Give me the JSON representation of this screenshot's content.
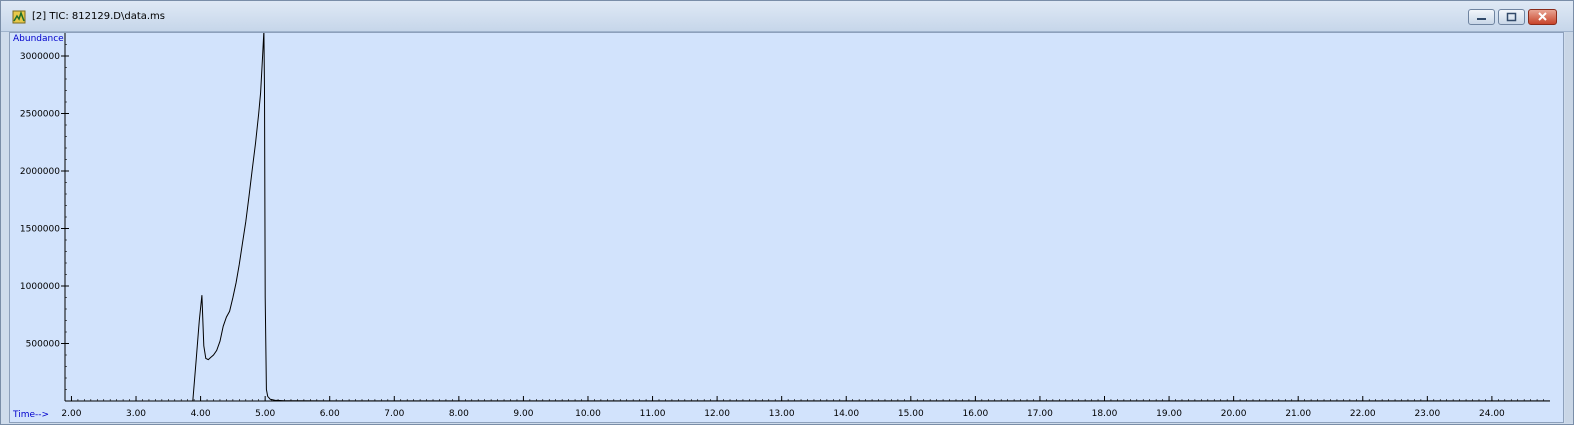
{
  "window": {
    "title": "[2] TIC: 812129.D\\data.ms",
    "icon": "chromatogram-app-icon",
    "controls": [
      "minimize",
      "maximize",
      "close"
    ]
  },
  "chart_data": {
    "type": "line",
    "ylabel": "Abundance",
    "xlabel": "Time-->",
    "xlim": [
      1.9,
      24.9
    ],
    "ylim": [
      0,
      3200000
    ],
    "xticks": [
      "2.00",
      "3.00",
      "4.00",
      "5.00",
      "6.00",
      "7.00",
      "8.00",
      "9.00",
      "10.00",
      "11.00",
      "12.00",
      "13.00",
      "14.00",
      "15.00",
      "16.00",
      "17.00",
      "18.00",
      "19.00",
      "20.00",
      "21.00",
      "22.00",
      "23.00",
      "24.00"
    ],
    "yticks": [
      "500000",
      "1000000",
      "1500000",
      "2000000",
      "2500000",
      "3000000"
    ],
    "series": [
      {
        "x": [
          1.9,
          3.88,
          3.93,
          3.98,
          4.02,
          4.05,
          4.08,
          4.12,
          4.16,
          4.2,
          4.25,
          4.3,
          4.35,
          4.4,
          4.45,
          4.5,
          4.55,
          4.6,
          4.65,
          4.7,
          4.75,
          4.8,
          4.85,
          4.9,
          4.93,
          4.96,
          4.98,
          4.99,
          5.0,
          5.02,
          5.04,
          5.08,
          5.15,
          5.3,
          5.5,
          6.0,
          24.9
        ],
        "y": [
          0,
          0,
          350000,
          700000,
          920000,
          480000,
          370000,
          360000,
          380000,
          400000,
          440000,
          520000,
          650000,
          730000,
          780000,
          900000,
          1030000,
          1190000,
          1380000,
          1560000,
          1780000,
          2010000,
          2240000,
          2500000,
          2680000,
          3000000,
          3220000,
          2700000,
          900000,
          100000,
          40000,
          15000,
          6000,
          3000,
          2000,
          1000,
          1000
        ]
      }
    ]
  }
}
